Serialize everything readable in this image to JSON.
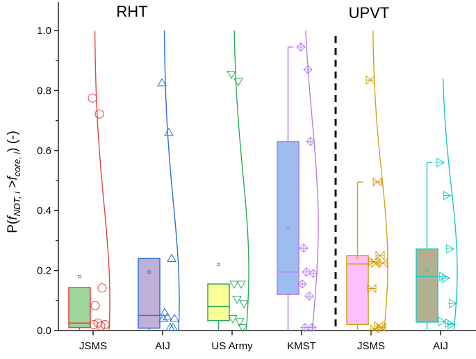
{
  "chart_data": {
    "type": "box",
    "ylabel_parts": {
      "p": "P(",
      "f1": "f",
      "s1": "NDT, i",
      "gt": " >",
      "f2": "f",
      "s2": "core, i",
      "end": ") (-)"
    },
    "ylim": [
      0,
      1.0
    ],
    "yticks": [
      "0.0",
      "0.2",
      "0.4",
      "0.6",
      "0.8",
      "1.0"
    ],
    "group_labels": [
      {
        "label": "RHT",
        "categories": [
          0,
          1,
          2,
          3
        ]
      },
      {
        "label": "UPVT",
        "categories": [
          4,
          5
        ]
      }
    ],
    "series": [
      {
        "name": "JSMS",
        "group": "RHT",
        "stroke": "#e8413a",
        "fill": "#9ed69a",
        "marker": "circle",
        "whisker_low": 0.0,
        "q1": 0.01,
        "median": 0.025,
        "q3": 0.143,
        "whisker_high": 0.143,
        "mean": 0.18,
        "points": [
          0.775,
          0.722,
          0.142,
          0.083,
          0.025,
          0.02,
          0.02,
          0.015
        ],
        "curve": {
          "top": 1.0,
          "mu": 0.1,
          "sd": 0.33
        }
      },
      {
        "name": "AIJ",
        "group": "RHT",
        "stroke": "#2a6fdb",
        "fill": "#c0b0d8",
        "marker": "triangle-up",
        "whisker_low": 0.0,
        "q1": 0.008,
        "median": 0.05,
        "q3": 0.24,
        "whisker_high": 0.24,
        "mean": 0.195,
        "points": [
          0.825,
          0.66,
          0.24,
          0.06,
          0.045,
          0.04,
          0.04,
          0.01,
          0.01
        ],
        "curve": {
          "top": 1.0,
          "mu": 0.1,
          "sd": 0.33
        }
      },
      {
        "name": "US Army",
        "group": "RHT",
        "stroke": "#2eaa5a",
        "fill": "#ffff99",
        "marker": "triangle-down",
        "whisker_low": 0.0,
        "q1": 0.033,
        "median": 0.08,
        "q3": 0.155,
        "whisker_high": 0.155,
        "mean": 0.22,
        "points": [
          0.855,
          0.83,
          0.155,
          0.155,
          0.105,
          0.09,
          0.04,
          0.03,
          0.01
        ],
        "curve": {
          "top": 1.0,
          "mu": 0.2,
          "sd": 0.33
        }
      },
      {
        "name": "KMST",
        "group": "RHT",
        "stroke": "#b57ee8",
        "fill": "#9dbcf0",
        "marker": "diamond-cross",
        "whisker_low": 0.0,
        "q1": 0.12,
        "median": 0.195,
        "q3": 0.63,
        "whisker_high": 0.945,
        "mean": 0.34,
        "points": [
          0.945,
          0.87,
          0.63,
          0.275,
          0.195,
          0.19,
          0.155,
          0.115,
          0.01,
          0.01
        ],
        "curve": {
          "top": 1.0,
          "mu": 0.35,
          "sd": 0.35
        }
      },
      {
        "name": "JSMS",
        "group": "UPVT",
        "stroke": "#d4a017",
        "fill": "#ffbfff",
        "marker": "bowtie",
        "whisker_low": 0.0,
        "q1": 0.02,
        "median": 0.222,
        "q3": 0.25,
        "whisker_high": 0.495,
        "mean": 0.245,
        "points": [
          0.835,
          0.495,
          0.25,
          0.23,
          0.225,
          0.225,
          0.14,
          0.015,
          0.01,
          0.005
        ],
        "curve": {
          "top": 1.0,
          "mu": 0.22,
          "sd": 0.3
        }
      },
      {
        "name": "AIJ",
        "group": "UPVT",
        "stroke": "#1ac8c8",
        "fill": "#b3b08f",
        "marker": "triangle-right-plus",
        "whisker_low": 0.0,
        "q1": 0.028,
        "median": 0.18,
        "q3": 0.272,
        "whisker_high": 0.56,
        "mean": 0.2,
        "points": [
          0.56,
          0.45,
          0.272,
          0.18,
          0.175,
          0.09,
          0.03,
          0.025,
          0.02
        ],
        "curve": {
          "top": 0.84,
          "mu": 0.2,
          "sd": 0.28
        }
      }
    ],
    "separator": "dashed line between KMST and UPVT JSMS",
    "grid": false
  }
}
